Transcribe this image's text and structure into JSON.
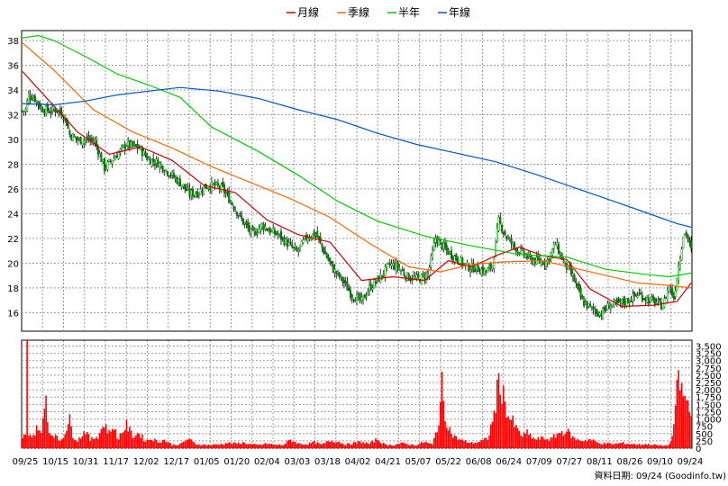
{
  "chart_data": [
    {
      "type": "candlestick",
      "title": "",
      "legend_position": "top-center",
      "legend": [
        {
          "name": "月線",
          "color": "#cc0000"
        },
        {
          "name": "季線",
          "color": "#ff6600"
        },
        {
          "name": "半年",
          "color": "#00cc00"
        },
        {
          "name": "年線",
          "color": "#0055cc"
        }
      ],
      "grid": true,
      "ylim": [
        14.5,
        38.8
      ],
      "yticks": [
        16,
        18,
        20,
        22,
        24,
        26,
        28,
        30,
        32,
        34,
        36,
        38
      ],
      "x_tick_labels": [
        "09/25",
        "10/15",
        "10/31",
        "11/17",
        "12/02",
        "12/17",
        "01/05",
        "01/20",
        "02/04",
        "03/03",
        "03/18",
        "04/02",
        "04/21",
        "05/07",
        "05/22",
        "06/08",
        "06/24",
        "07/09",
        "07/27",
        "08/11",
        "08/26",
        "09/10",
        "09/24"
      ],
      "up_color": "#00aa00",
      "down_color": "#009900",
      "price_anchors": [
        [
          0,
          32.3
        ],
        [
          2,
          32.4
        ],
        [
          4,
          33.6
        ],
        [
          8,
          33.3
        ],
        [
          12,
          32.5
        ],
        [
          18,
          32.3
        ],
        [
          22,
          32.4
        ],
        [
          27,
          31.8
        ],
        [
          30,
          30.4
        ],
        [
          36,
          29.9
        ],
        [
          41,
          30.0
        ],
        [
          46,
          29.8
        ],
        [
          52,
          27.7
        ],
        [
          58,
          28.5
        ],
        [
          66,
          29.6
        ],
        [
          74,
          29.3
        ],
        [
          80,
          28.4
        ],
        [
          86,
          28.1
        ],
        [
          93,
          27.3
        ],
        [
          100,
          26.5
        ],
        [
          106,
          25.6
        ],
        [
          111,
          25.7
        ],
        [
          116,
          26.2
        ],
        [
          121,
          26.3
        ],
        [
          127,
          26.0
        ],
        [
          134,
          24.6
        ],
        [
          140,
          23.3
        ],
        [
          146,
          22.3
        ],
        [
          152,
          23.1
        ],
        [
          157,
          22.6
        ],
        [
          162,
          22.3
        ],
        [
          168,
          21.6
        ],
        [
          174,
          20.9
        ],
        [
          180,
          22.1
        ],
        [
          186,
          22.4
        ],
        [
          191,
          21.0
        ],
        [
          197,
          19.5
        ],
        [
          203,
          18.6
        ],
        [
          209,
          17.4
        ],
        [
          215,
          16.9
        ],
        [
          220,
          18.0
        ],
        [
          227,
          18.9
        ],
        [
          233,
          19.9
        ],
        [
          238,
          19.7
        ],
        [
          244,
          18.9
        ],
        [
          251,
          18.7
        ],
        [
          257,
          19.1
        ],
        [
          262,
          22.0
        ],
        [
          266,
          21.4
        ],
        [
          271,
          20.8
        ],
        [
          277,
          20.2
        ],
        [
          282,
          19.7
        ],
        [
          288,
          19.6
        ],
        [
          294,
          19.3
        ],
        [
          298,
          19.8
        ],
        [
          302,
          23.4
        ],
        [
          307,
          22.1
        ],
        [
          312,
          21.3
        ],
        [
          317,
          20.8
        ],
        [
          322,
          20.3
        ],
        [
          328,
          20.1
        ],
        [
          333,
          20.2
        ],
        [
          338,
          21.6
        ],
        [
          343,
          20.1
        ],
        [
          349,
          18.9
        ],
        [
          355,
          16.9
        ],
        [
          361,
          16.3
        ],
        [
          367,
          15.9
        ],
        [
          372,
          16.6
        ],
        [
          378,
          16.7
        ],
        [
          384,
          17.0
        ],
        [
          390,
          17.5
        ],
        [
          396,
          17.1
        ],
        [
          402,
          16.8
        ],
        [
          406,
          16.5
        ],
        [
          410,
          18.2
        ],
        [
          413,
          17.2
        ],
        [
          416,
          19.8
        ],
        [
          419,
          22.3
        ],
        [
          421,
          22.4
        ],
        [
          424,
          21.0
        ]
      ],
      "overlay_lines": [
        {
          "name": "月線",
          "color": "#cc0000",
          "points": [
            [
              0,
              35.5
            ],
            [
              15,
              33.4
            ],
            [
              35,
              30.6
            ],
            [
              55,
              28.8
            ],
            [
              75,
              29.4
            ],
            [
              95,
              28.3
            ],
            [
              115,
              26.3
            ],
            [
              135,
              25.7
            ],
            [
              155,
              23.5
            ],
            [
              175,
              22.3
            ],
            [
              195,
              21.7
            ],
            [
              215,
              18.6
            ],
            [
              235,
              18.9
            ],
            [
              255,
              18.6
            ],
            [
              270,
              20.2
            ],
            [
              285,
              19.7
            ],
            [
              300,
              20.6
            ],
            [
              315,
              21.3
            ],
            [
              330,
              20.6
            ],
            [
              345,
              20.3
            ],
            [
              360,
              17.9
            ],
            [
              380,
              16.5
            ],
            [
              400,
              16.6
            ],
            [
              415,
              16.9
            ],
            [
              424,
              18.4
            ]
          ]
        },
        {
          "name": "季線",
          "color": "#ff6600",
          "points": [
            [
              0,
              37.8
            ],
            [
              20,
              35.6
            ],
            [
              45,
              32.4
            ],
            [
              70,
              30.6
            ],
            [
              95,
              29.3
            ],
            [
              120,
              27.8
            ],
            [
              145,
              26.5
            ],
            [
              170,
              25.2
            ],
            [
              195,
              23.7
            ],
            [
              220,
              21.6
            ],
            [
              245,
              19.7
            ],
            [
              265,
              19.3
            ],
            [
              285,
              19.9
            ],
            [
              305,
              20.1
            ],
            [
              330,
              20.2
            ],
            [
              350,
              19.6
            ],
            [
              370,
              19.0
            ],
            [
              390,
              18.4
            ],
            [
              410,
              18.2
            ],
            [
              424,
              18.0
            ]
          ]
        },
        {
          "name": "半年",
          "color": "#00cc00",
          "points": [
            [
              0,
              38.2
            ],
            [
              10,
              38.4
            ],
            [
              20,
              38.0
            ],
            [
              40,
              36.7
            ],
            [
              60,
              35.3
            ],
            [
              80,
              34.4
            ],
            [
              100,
              33.4
            ],
            [
              120,
              31.0
            ],
            [
              150,
              29.0
            ],
            [
              175,
              27.1
            ],
            [
              200,
              25.0
            ],
            [
              225,
              23.4
            ],
            [
              255,
              22.2
            ],
            [
              285,
              21.4
            ],
            [
              315,
              20.7
            ],
            [
              345,
              20.5
            ],
            [
              370,
              19.5
            ],
            [
              395,
              19.1
            ],
            [
              410,
              18.9
            ],
            [
              424,
              19.2
            ]
          ]
        },
        {
          "name": "年線",
          "color": "#0055cc",
          "points": [
            [
              0,
              32.9
            ],
            [
              20,
              32.8
            ],
            [
              40,
              33.1
            ],
            [
              60,
              33.6
            ],
            [
              80,
              33.9
            ],
            [
              100,
              34.2
            ],
            [
              125,
              33.9
            ],
            [
              150,
              33.3
            ],
            [
              175,
              32.4
            ],
            [
              200,
              31.6
            ],
            [
              225,
              30.5
            ],
            [
              250,
              29.6
            ],
            [
              275,
              28.9
            ],
            [
              300,
              28.2
            ],
            [
              325,
              27.2
            ],
            [
              350,
              26.1
            ],
            [
              375,
              25.0
            ],
            [
              395,
              24.1
            ],
            [
              415,
              23.2
            ],
            [
              424,
              22.9
            ]
          ]
        }
      ]
    },
    {
      "type": "bar",
      "title": "",
      "color": "#ff0000",
      "ylim": [
        0,
        3700
      ],
      "yticks": [
        0,
        250,
        500,
        750,
        1000,
        1250,
        1500,
        1750,
        2000,
        2250,
        2500,
        2750,
        3000,
        3250,
        3500
      ],
      "ytick_labels": [
        "0",
        "250",
        "500",
        "750",
        "1,000",
        "1,250",
        "1,500",
        "1,750",
        "2,000",
        "2,250",
        "2,500",
        "2,750",
        "3,000",
        "3,250",
        "3,500"
      ],
      "volume_anchors": [
        [
          0,
          300
        ],
        [
          1,
          520
        ],
        [
          2,
          420
        ],
        [
          3,
          3600
        ],
        [
          4,
          380
        ],
        [
          5,
          620
        ],
        [
          6,
          400
        ],
        [
          8,
          520
        ],
        [
          10,
          780
        ],
        [
          12,
          450
        ],
        [
          15,
          1850
        ],
        [
          17,
          520
        ],
        [
          20,
          480
        ],
        [
          23,
          280
        ],
        [
          25,
          320
        ],
        [
          30,
          950
        ],
        [
          32,
          460
        ],
        [
          35,
          260
        ],
        [
          40,
          620
        ],
        [
          43,
          280
        ],
        [
          48,
          430
        ],
        [
          52,
          850
        ],
        [
          55,
          520
        ],
        [
          58,
          800
        ],
        [
          60,
          300
        ],
        [
          66,
          780
        ],
        [
          70,
          420
        ],
        [
          74,
          520
        ],
        [
          78,
          250
        ],
        [
          82,
          330
        ],
        [
          86,
          220
        ],
        [
          90,
          280
        ],
        [
          95,
          120
        ],
        [
          100,
          130
        ],
        [
          105,
          320
        ],
        [
          110,
          140
        ],
        [
          115,
          120
        ],
        [
          120,
          110
        ],
        [
          125,
          140
        ],
        [
          130,
          180
        ],
        [
          135,
          160
        ],
        [
          140,
          190
        ],
        [
          145,
          130
        ],
        [
          150,
          110
        ],
        [
          155,
          160
        ],
        [
          160,
          120
        ],
        [
          165,
          110
        ],
        [
          170,
          280
        ],
        [
          175,
          160
        ],
        [
          180,
          140
        ],
        [
          185,
          200
        ],
        [
          190,
          120
        ],
        [
          195,
          260
        ],
        [
          200,
          230
        ],
        [
          205,
          130
        ],
        [
          210,
          170
        ],
        [
          215,
          220
        ],
        [
          220,
          150
        ],
        [
          225,
          310
        ],
        [
          230,
          120
        ],
        [
          235,
          110
        ],
        [
          240,
          170
        ],
        [
          245,
          130
        ],
        [
          250,
          110
        ],
        [
          255,
          220
        ],
        [
          260,
          120
        ],
        [
          264,
          900
        ],
        [
          266,
          2100
        ],
        [
          268,
          1100
        ],
        [
          270,
          800
        ],
        [
          272,
          500
        ],
        [
          275,
          350
        ],
        [
          280,
          240
        ],
        [
          285,
          180
        ],
        [
          290,
          220
        ],
        [
          295,
          330
        ],
        [
          298,
          900
        ],
        [
          300,
          1500
        ],
        [
          302,
          2300
        ],
        [
          304,
          2000
        ],
        [
          306,
          1600
        ],
        [
          308,
          1100
        ],
        [
          311,
          900
        ],
        [
          314,
          600
        ],
        [
          317,
          420
        ],
        [
          320,
          520
        ],
        [
          325,
          300
        ],
        [
          330,
          340
        ],
        [
          335,
          300
        ],
        [
          340,
          520
        ],
        [
          345,
          600
        ],
        [
          350,
          320
        ],
        [
          355,
          260
        ],
        [
          360,
          300
        ],
        [
          365,
          180
        ],
        [
          370,
          160
        ],
        [
          375,
          140
        ],
        [
          380,
          180
        ],
        [
          385,
          150
        ],
        [
          390,
          130
        ],
        [
          395,
          140
        ],
        [
          400,
          120
        ],
        [
          405,
          90
        ],
        [
          408,
          100
        ],
        [
          410,
          110
        ],
        [
          412,
          420
        ],
        [
          414,
          1200
        ],
        [
          416,
          2600
        ],
        [
          418,
          1900
        ],
        [
          420,
          1700
        ],
        [
          422,
          1500
        ],
        [
          424,
          1100
        ]
      ]
    }
  ],
  "footer": {
    "date_label": "資料日期: 09/24  (Goodinfo.tw)"
  }
}
